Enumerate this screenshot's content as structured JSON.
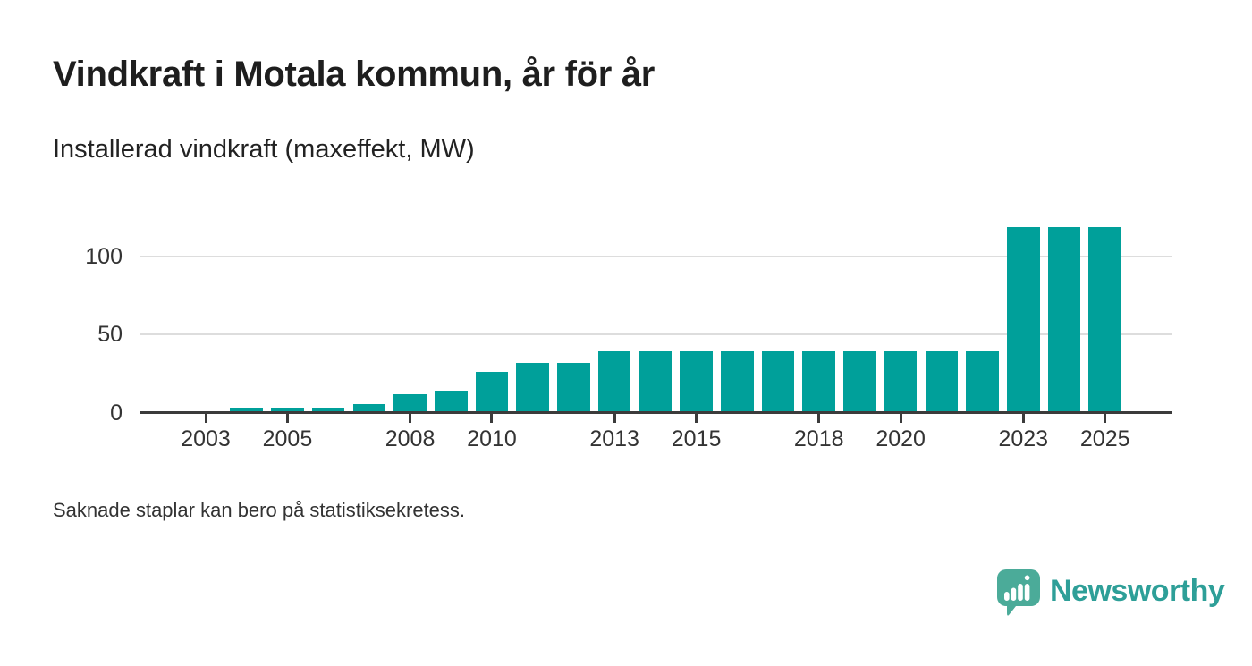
{
  "header": {
    "title": "Vindkraft i Motala kommun, år för år",
    "subtitle": "Installerad vindkraft (maxeffekt, MW)"
  },
  "footer": {
    "note": "Saknade staplar kan bero på statistiksekretess."
  },
  "brand": {
    "name": "Newsworthy",
    "icon": "newsworthy-speech-bubble-bar-chart-icon",
    "icon_color": "#4BAB99",
    "wordmark_color": "#2E9F98"
  },
  "chart_data": {
    "type": "bar",
    "title": "Vindkraft i Motala kommun, år för år",
    "subtitle": "Installerad vindkraft (maxeffekt, MW)",
    "unit": "MW",
    "x": [
      2002,
      2003,
      2004,
      2005,
      2006,
      2007,
      2008,
      2009,
      2010,
      2011,
      2012,
      2013,
      2014,
      2015,
      2016,
      2017,
      2018,
      2019,
      2020,
      2021,
      2022,
      2023,
      2024,
      2025
    ],
    "values": [
      null,
      null,
      3.4,
      3.4,
      3.4,
      5.7,
      11.5,
      14,
      26,
      32,
      32,
      39,
      39,
      39,
      39,
      39,
      39,
      39,
      39,
      39,
      39,
      119,
      119,
      119
    ],
    "missing_years_note": "Saknade staplar kan bero på statistiksekretess.",
    "ylim": [
      0,
      125
    ],
    "yticks": [
      0,
      50,
      100
    ],
    "xticks": [
      2003,
      2005,
      2008,
      2010,
      2013,
      2015,
      2018,
      2020,
      2023,
      2025
    ],
    "grid": "horizontal",
    "legend": "none",
    "bar_color": "#00A09A",
    "axis_color": "#3B3B3B",
    "grid_color": "#DDDDDD",
    "label_color": "#333333"
  }
}
